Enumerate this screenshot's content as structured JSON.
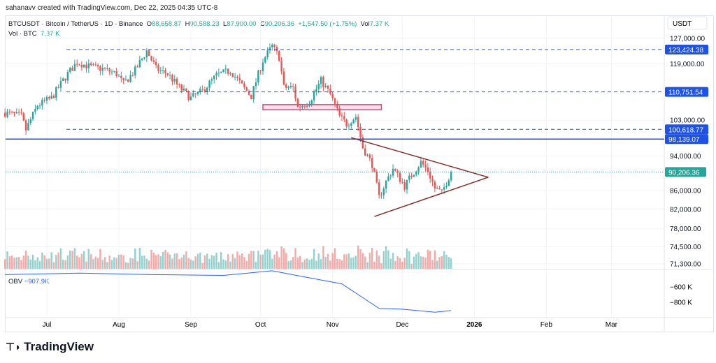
{
  "credit": "sahanavv created with TradingView.com, Dec 22, 2025 04:35 UTC-8",
  "legend": {
    "symbol": "BTCUSDT · Bitcoin / TetherUS · 1D · Binance",
    "o_label": "O",
    "open": "88,658.87",
    "h_label": "H",
    "high": "90,588.23",
    "l_label": "L",
    "low": "87,900.00",
    "c_label": "C",
    "close": "90,206.36",
    "change": "+1,547.50 (+1.75%)",
    "vol_label": "Vol",
    "vol": "7.37 K",
    "vol_line_label": "Vol · BTC",
    "vol_line_value": "7.37 K"
  },
  "obv": {
    "label": "OBV",
    "value": "−907.9K"
  },
  "logo": "TradingView",
  "colors": {
    "up": "#26a69a",
    "down": "#ef5350",
    "level": "#1e53e5",
    "last": "#26a69a",
    "triangle": "#8b2a2a",
    "zone": "#e0457b",
    "obv": "#2962ff"
  },
  "chart_data": {
    "type": "line",
    "title": "BTCUSDT · Bitcoin / TetherUS · 1D · Binance",
    "ylabel": "USDT",
    "y_scale": "log",
    "ylim": [
      71300,
      127000
    ],
    "grid": true,
    "price_ticks": [
      "127,000.00",
      "119,000.00",
      "103,000.00",
      "94,000.00",
      "86,000.00",
      "82,000.00",
      "78,000.00",
      "74,500.00",
      "71,300.00"
    ],
    "price_tick_values": [
      127000,
      119000,
      103000,
      94000,
      86000,
      82000,
      78000,
      74500,
      71300
    ],
    "x_ticks": [
      "Jul",
      "Aug",
      "Sep",
      "Oct",
      "Nov",
      "Dec",
      "2026",
      "Feb",
      "Mar"
    ],
    "x_tick_dates": [
      "2025-07-01",
      "2025-08-01",
      "2025-09-01",
      "2025-10-01",
      "2025-11-01",
      "2025-12-01",
      "2026-01-01",
      "2026-02-01",
      "2026-03-01"
    ],
    "close_series": {
      "x": [
        "2025-06-13",
        "2025-06-20",
        "2025-06-22",
        "2025-06-27",
        "2025-07-03",
        "2025-07-10",
        "2025-07-14",
        "2025-07-20",
        "2025-07-25",
        "2025-07-31",
        "2025-08-03",
        "2025-08-08",
        "2025-08-13",
        "2025-08-17",
        "2025-08-22",
        "2025-08-27",
        "2025-09-01",
        "2025-09-06",
        "2025-09-12",
        "2025-09-18",
        "2025-09-23",
        "2025-09-27",
        "2025-10-02",
        "2025-10-06",
        "2025-10-09",
        "2025-10-11",
        "2025-10-15",
        "2025-10-17",
        "2025-10-22",
        "2025-10-27",
        "2025-10-31",
        "2025-11-04",
        "2025-11-07",
        "2025-11-11",
        "2025-11-14",
        "2025-11-18",
        "2025-11-21",
        "2025-11-24",
        "2025-11-27",
        "2025-12-02",
        "2025-12-05",
        "2025-12-09",
        "2025-12-12",
        "2025-12-15",
        "2025-12-18",
        "2025-12-22"
      ],
      "y": [
        105000,
        104000,
        100500,
        107000,
        109000,
        116000,
        119500,
        118000,
        117500,
        116000,
        113000,
        117000,
        123000,
        117500,
        116000,
        112000,
        109000,
        111000,
        115500,
        117000,
        112500,
        109500,
        120000,
        124500,
        121000,
        112000,
        112000,
        106500,
        108000,
        114000,
        110000,
        104000,
        102000,
        104000,
        96000,
        92000,
        84500,
        88000,
        91000,
        87000,
        89500,
        92500,
        90500,
        86500,
        85500,
        90206
      ]
    },
    "obv_series": {
      "ticks": [
        "−600 K",
        "−800 K"
      ],
      "tick_values": [
        -600000,
        -800000
      ],
      "x": [
        "2025-06-13",
        "2025-07-15",
        "2025-08-15",
        "2025-09-15",
        "2025-10-06",
        "2025-10-20",
        "2025-11-05",
        "2025-11-21",
        "2025-12-01",
        "2025-12-15",
        "2025-12-22"
      ],
      "y": [
        -440000,
        -420000,
        -440000,
        -450000,
        -390000,
        -470000,
        -560000,
        -880000,
        -890000,
        -930000,
        -907900
      ]
    },
    "horizontal_levels": [
      {
        "value": 123424.38,
        "label": "123,424.38",
        "style": "dashed"
      },
      {
        "value": 110751.54,
        "label": "110,751.54",
        "style": "dashed"
      },
      {
        "value": 100618.77,
        "label": "100,618.77",
        "style": "dashed"
      },
      {
        "value": 98139.07,
        "label": "98,139.07",
        "style": "solid"
      },
      {
        "value": 90206.36,
        "label": "90,206.36",
        "style": "dotted-last-price"
      }
    ],
    "zone": {
      "from": "2025-10-02",
      "to": "2025-11-22",
      "top": 107200,
      "bottom": 105800
    },
    "triangle": {
      "upper": [
        [
          "2025-11-09",
          98500
        ],
        [
          "2026-01-07",
          89000
        ]
      ],
      "lower": [
        [
          "2025-11-19",
          80500
        ],
        [
          "2026-01-07",
          89000
        ]
      ]
    }
  }
}
